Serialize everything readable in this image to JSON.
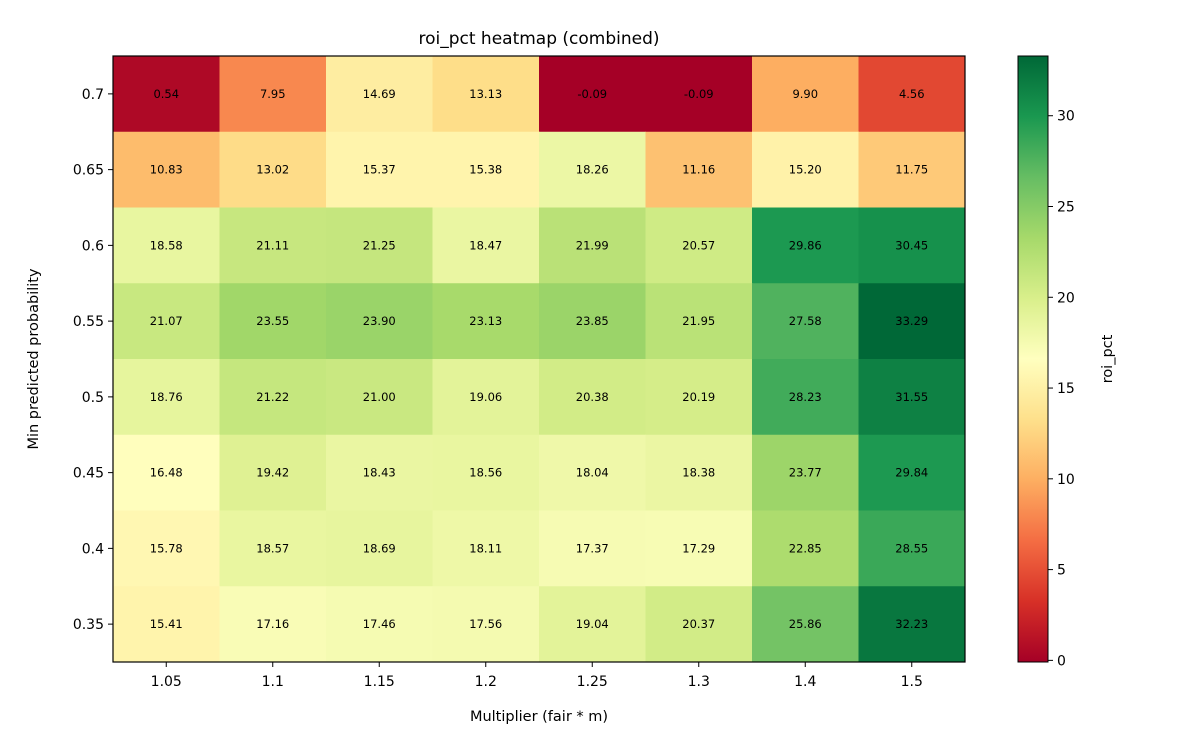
{
  "chart_data": {
    "type": "heatmap",
    "title": "roi_pct heatmap (combined)",
    "xlabel": "Multiplier (fair * m)",
    "ylabel": "Min predicted probability",
    "x_categories": [
      "1.05",
      "1.1",
      "1.15",
      "1.2",
      "1.25",
      "1.3",
      "1.4",
      "1.5"
    ],
    "y_categories": [
      "0.7",
      "0.65",
      "0.6",
      "0.55",
      "0.5",
      "0.45",
      "0.4",
      "0.35"
    ],
    "values": [
      [
        0.54,
        7.95,
        14.69,
        13.13,
        -0.09,
        -0.09,
        9.9,
        4.56
      ],
      [
        10.83,
        13.02,
        15.37,
        15.38,
        18.26,
        11.16,
        15.2,
        11.75
      ],
      [
        18.58,
        21.11,
        21.25,
        18.47,
        21.99,
        20.57,
        29.86,
        30.45
      ],
      [
        21.07,
        23.55,
        23.9,
        23.13,
        23.85,
        21.95,
        27.58,
        33.29
      ],
      [
        18.76,
        21.22,
        21.0,
        19.06,
        20.38,
        20.19,
        28.23,
        31.55
      ],
      [
        16.48,
        19.42,
        18.43,
        18.56,
        18.04,
        18.38,
        23.77,
        29.84
      ],
      [
        15.78,
        18.57,
        18.69,
        18.11,
        17.37,
        17.29,
        22.85,
        28.55
      ],
      [
        15.41,
        17.16,
        17.46,
        17.56,
        19.04,
        20.37,
        25.86,
        32.23
      ]
    ],
    "colorbar": {
      "label": "roi_pct",
      "range": [
        -0.09,
        33.29
      ],
      "ticks": [
        0,
        5,
        10,
        15,
        20,
        25,
        30
      ],
      "colormap": "RdYlGn"
    }
  }
}
